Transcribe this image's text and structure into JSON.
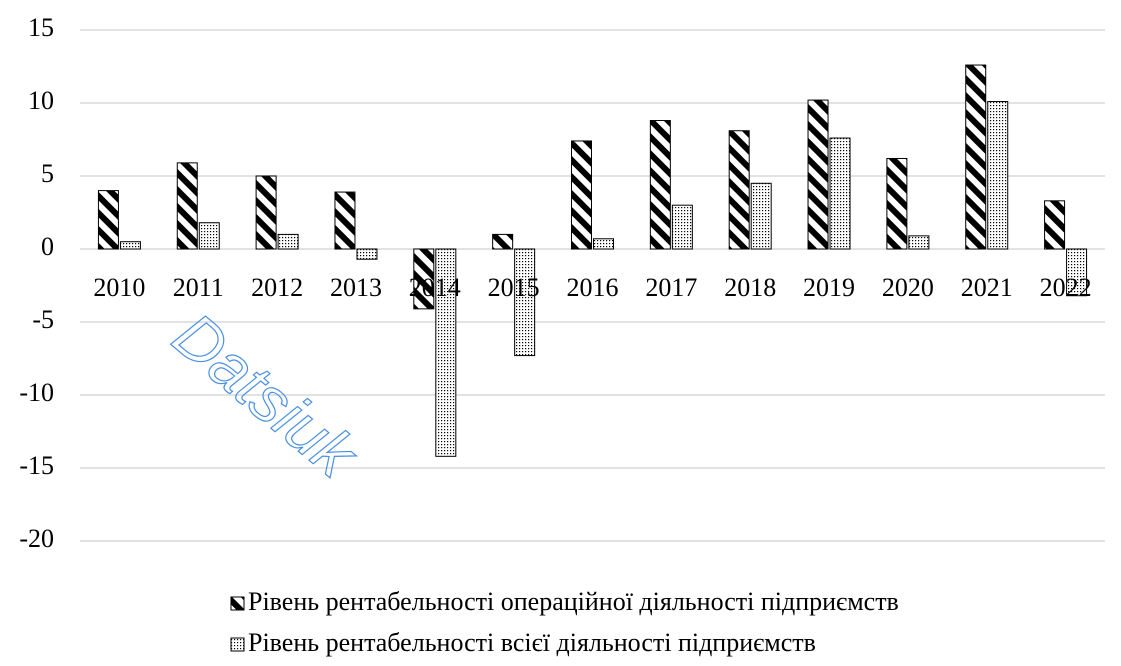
{
  "chart_data": {
    "type": "bar",
    "categories": [
      "2010",
      "2011",
      "2012",
      "2013",
      "2014",
      "2015",
      "2016",
      "2017",
      "2018",
      "2019",
      "2020",
      "2021",
      "2022"
    ],
    "series": [
      {
        "name": "Рівень рентабельності операційної діяльності підприємств",
        "color": "#000000",
        "pattern": "hatch",
        "values": [
          4.0,
          5.9,
          5.0,
          3.9,
          -4.1,
          1.0,
          7.4,
          8.8,
          8.1,
          10.2,
          6.2,
          12.6,
          3.3
        ]
      },
      {
        "name": "Рівень рентабельності всієї діяльності підприємств",
        "color": "#000000",
        "pattern": "dots",
        "values": [
          0.5,
          1.8,
          1.0,
          -0.7,
          -14.2,
          -7.3,
          0.7,
          3.0,
          4.5,
          7.6,
          0.9,
          10.1,
          -3.2
        ]
      }
    ],
    "ylim": [
      -20,
      15
    ],
    "yticks": [
      -20,
      -15,
      -10,
      -5,
      0,
      5,
      10,
      15
    ],
    "grid": true,
    "legend": "bottom",
    "watermark": "Datsiuk"
  }
}
